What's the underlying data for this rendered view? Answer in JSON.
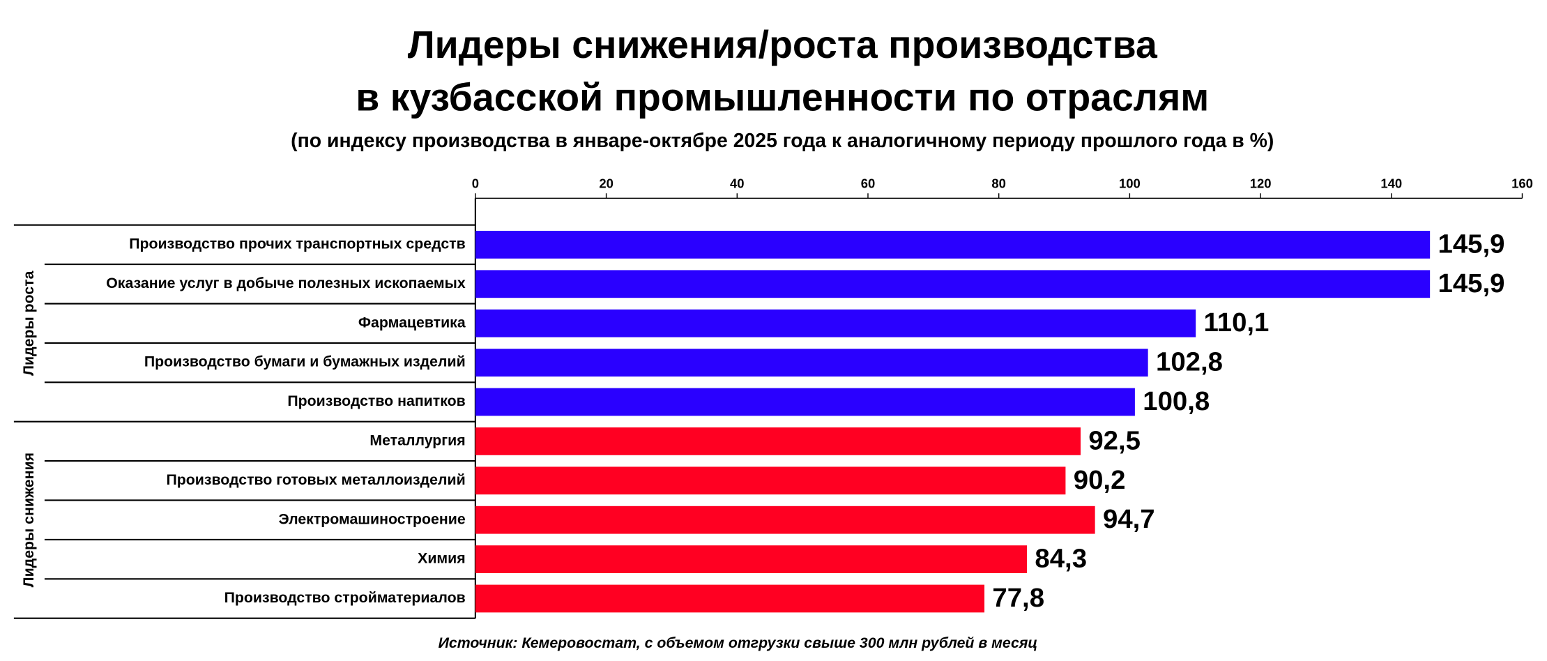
{
  "chart_data": {
    "type": "bar",
    "orientation": "horizontal",
    "title": "Лидеры снижения/роста производства",
    "title_line2": "в кузбасской промышленности по отраслям",
    "subtitle": "(по индексу производства в январе-октябре 2025 года к аналогичному периоду прошлого года в %)",
    "source": "Источник: Кемеровостат, с объемом отгрузки свыше 300 млн рублей в месяц",
    "categories": [
      "Производство прочих транспортных средств",
      "Оказание услуг в добыче полезных ископаемых",
      "Фармацевтика",
      "Производство бумаги и бумажных изделий",
      "Производство напитков",
      "Металлургия",
      "Производство готовых металлоизделий",
      "Электромашиностроение",
      "Химия",
      "Производство стройматериалов"
    ],
    "series": [
      {
        "name": "Лидеры роста",
        "color": "#2a00ff",
        "values": [
          145.9,
          145.9,
          110.1,
          102.8,
          100.8,
          null,
          null,
          null,
          null,
          null
        ],
        "value_labels": [
          "145,9",
          "145,9",
          "110,1",
          "102,8",
          "100,8",
          null,
          null,
          null,
          null,
          null
        ]
      },
      {
        "name": "Лидеры снижения",
        "color": "#ff0022",
        "values": [
          null,
          null,
          null,
          null,
          null,
          92.5,
          90.2,
          94.7,
          84.3,
          77.8
        ],
        "value_labels": [
          null,
          null,
          null,
          null,
          null,
          "92,5",
          "90,2",
          "94,7",
          "84,3",
          "77,8"
        ]
      }
    ],
    "xlim": [
      0,
      160
    ],
    "xticks": [
      0,
      20,
      40,
      60,
      80,
      100,
      120,
      140,
      160
    ]
  }
}
